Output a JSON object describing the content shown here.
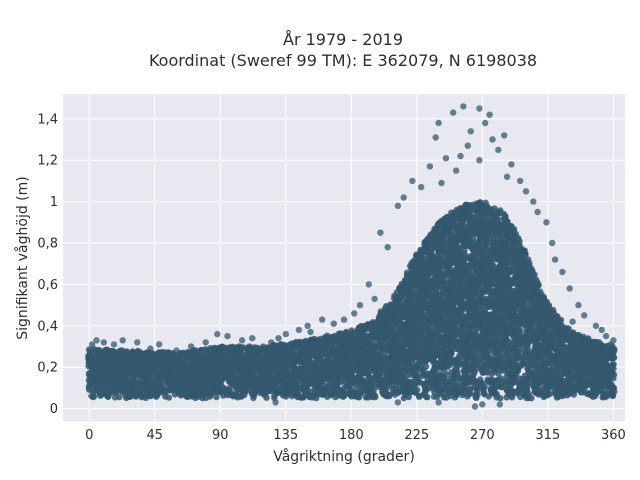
{
  "chart_data": {
    "type": "scatter",
    "title": "År 1979 - 2019",
    "subtitle": "Koordinat (Sweref 99 TM): E 362079, N 6198038",
    "xlabel": "Vågriktning (grader)",
    "ylabel": "Signifikant våghöjd (m)",
    "xlim": [
      -18,
      368
    ],
    "ylim": [
      -0.06,
      1.52
    ],
    "xticks": [
      0,
      45,
      90,
      135,
      180,
      225,
      270,
      315,
      360
    ],
    "yticks": [
      0,
      0.2,
      0.4,
      0.6,
      0.8,
      1,
      1.2,
      1.4
    ],
    "ytick_labels": [
      "0",
      "0,2",
      "0,4",
      "0,6",
      "0,8",
      "1",
      "1,2",
      "1,4"
    ],
    "grid": true,
    "colors": {
      "points": "#34586e",
      "plot_bg": "#e8e8f0",
      "grid": "#ffffff"
    },
    "envelope": {
      "x": [
        0,
        30,
        60,
        90,
        120,
        150,
        180,
        195,
        210,
        225,
        240,
        255,
        270,
        285,
        300,
        315,
        330,
        345,
        360
      ],
      "upper": [
        0.29,
        0.28,
        0.27,
        0.3,
        0.3,
        0.33,
        0.38,
        0.42,
        0.55,
        0.75,
        0.9,
        0.98,
        1.0,
        0.95,
        0.75,
        0.5,
        0.38,
        0.33,
        0.3
      ],
      "lower": [
        0.05,
        0.05,
        0.05,
        0.05,
        0.05,
        0.05,
        0.05,
        0.05,
        0.05,
        0.05,
        0.05,
        0.05,
        0.05,
        0.05,
        0.05,
        0.05,
        0.05,
        0.05,
        0.05
      ]
    },
    "outliers": [
      [
        257,
        1.46
      ],
      [
        268,
        1.45
      ],
      [
        250,
        1.43
      ],
      [
        275,
        1.42
      ],
      [
        240,
        1.38
      ],
      [
        272,
        1.38
      ],
      [
        262,
        1.34
      ],
      [
        285,
        1.32
      ],
      [
        238,
        1.31
      ],
      [
        277,
        1.3
      ],
      [
        260,
        1.27
      ],
      [
        281,
        1.25
      ],
      [
        255,
        1.22
      ],
      [
        245,
        1.21
      ],
      [
        268,
        1.2
      ],
      [
        290,
        1.18
      ],
      [
        234,
        1.17
      ],
      [
        252,
        1.15
      ],
      [
        287,
        1.12
      ],
      [
        222,
        1.1
      ],
      [
        242,
        1.09
      ],
      [
        296,
        1.1
      ],
      [
        228,
        1.07
      ],
      [
        300,
        1.05
      ],
      [
        216,
        1.02
      ],
      [
        305,
        1.0
      ],
      [
        212,
        0.98
      ],
      [
        308,
        0.95
      ],
      [
        314,
        0.9
      ],
      [
        200,
        0.85
      ],
      [
        318,
        0.8
      ],
      [
        205,
        0.78
      ],
      [
        320,
        0.72
      ],
      [
        192,
        0.6
      ],
      [
        325,
        0.66
      ],
      [
        330,
        0.58
      ],
      [
        186,
        0.5
      ],
      [
        336,
        0.5
      ],
      [
        340,
        0.45
      ],
      [
        332,
        0.42
      ],
      [
        348,
        0.4
      ],
      [
        352,
        0.38
      ],
      [
        355,
        0.35
      ],
      [
        175,
        0.43
      ],
      [
        168,
        0.41
      ],
      [
        160,
        0.43
      ],
      [
        150,
        0.4
      ],
      [
        144,
        0.38
      ],
      [
        135,
        0.36
      ],
      [
        130,
        0.34
      ],
      [
        125,
        0.32
      ],
      [
        112,
        0.34
      ],
      [
        105,
        0.33
      ],
      [
        95,
        0.35
      ],
      [
        88,
        0.36
      ],
      [
        80,
        0.32
      ],
      [
        70,
        0.3
      ],
      [
        60,
        0.28
      ],
      [
        48,
        0.31
      ],
      [
        42,
        0.29
      ],
      [
        33,
        0.32
      ],
      [
        23,
        0.33
      ],
      [
        17,
        0.31
      ],
      [
        5,
        0.33
      ],
      [
        2,
        0.31
      ],
      [
        10,
        0.32
      ],
      [
        128,
        0.03
      ],
      [
        265,
        0.01
      ],
      [
        270,
        0.02
      ],
      [
        282,
        0.02
      ],
      [
        212,
        0.03
      ],
      [
        240,
        0.03
      ],
      [
        360,
        0.33
      ],
      [
        358,
        0.31
      ],
      [
        110,
        0.3
      ],
      [
        152,
        0.37
      ],
      [
        182,
        0.46
      ],
      [
        196,
        0.53
      ]
    ]
  }
}
